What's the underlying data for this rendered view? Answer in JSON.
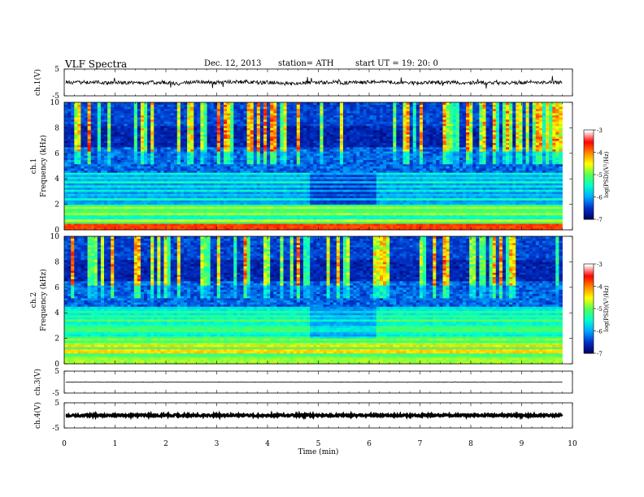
{
  "header": {
    "title": "VLF  Spectra",
    "date": "Dec. 12,  2013",
    "station": "station= ATH",
    "start_ut": "start  UT  =    19: 20: 0"
  },
  "chart_data": {
    "type": "spectrogram",
    "x_range_min": [
      0,
      10
    ],
    "xlabel": "Time  (min)",
    "x_ticks": [
      "0",
      "1",
      "2",
      "3",
      "4",
      "5",
      "6",
      "7",
      "8",
      "9",
      "10"
    ],
    "data_end_min": 9.8,
    "panels": [
      {
        "id": "ch1",
        "ylabel": "ch.1(V)",
        "ylim": [
          -5,
          5
        ],
        "y_ticks": [
          "5",
          "-5"
        ],
        "level": 0,
        "noise": "moderate"
      },
      {
        "id": "ch1-spec",
        "ylabel": "ch.1\nFrequency  (kHz)",
        "ylim_khz": [
          0,
          10
        ],
        "y_ticks": [
          "0",
          "2",
          "4",
          "6",
          "8",
          "10"
        ],
        "colorbar": {
          "label": "log(PSD)(V²/Hz)",
          "range": [
            -7,
            -3
          ],
          "ticks": [
            "-3",
            "-4",
            "-5",
            "-6",
            "-7"
          ]
        },
        "segment_changes_min": [
          4.8,
          6.1
        ]
      },
      {
        "id": "ch2-spec",
        "ylabel": "ch.2\nFrequency  (kHz)",
        "ylim_khz": [
          0,
          10
        ],
        "y_ticks": [
          "0",
          "2",
          "4",
          "6",
          "8",
          "10"
        ],
        "colorbar": {
          "label": "log(PSD)(V²/Hz)",
          "range": [
            -7,
            -3
          ],
          "ticks": [
            "-3",
            "-4",
            "-5",
            "-6",
            "-7"
          ]
        },
        "segment_changes_min": [
          4.8,
          6.1
        ]
      },
      {
        "id": "ch3",
        "ylabel": "ch.3(V)",
        "ylim": [
          -5,
          5
        ],
        "y_ticks": [
          "5",
          "-5"
        ],
        "level": 0,
        "noise": "low"
      },
      {
        "id": "ch4",
        "ylabel": "ch.4(V)",
        "ylim": [
          -5,
          5
        ],
        "y_ticks": [
          "5",
          "-5"
        ],
        "level": 0,
        "noise": "thick"
      }
    ],
    "colors": {
      "background": "#ffffff",
      "colormap": [
        "#000066",
        "#0033cc",
        "#00aaff",
        "#00ffcc",
        "#55ff55",
        "#ffff00",
        "#ff8800",
        "#ff0000",
        "#ffffff"
      ]
    }
  }
}
